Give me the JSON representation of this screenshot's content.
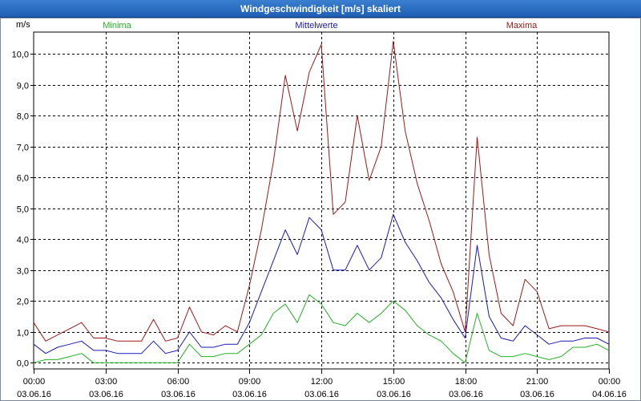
{
  "window": {
    "title": "Windgeschwindigkeit [m/s] skaliert"
  },
  "colors": {
    "minima": "#22b322",
    "mittel": "#1a1ab8",
    "maxima": "#a01818",
    "grid": "#000000"
  },
  "chart_data": {
    "type": "line",
    "title": "Windgeschwindigkeit [m/s] skaliert",
    "ylabel": "m/s",
    "xlabel": "",
    "ylim": [
      -0.2,
      10.7
    ],
    "xlim": [
      0,
      24
    ],
    "yticks": [
      "0,0",
      "1,0",
      "2,0",
      "3,0",
      "4,0",
      "5,0",
      "6,0",
      "7,0",
      "8,0",
      "9,0",
      "10,0"
    ],
    "xticks": [
      {
        "time": "00:00",
        "date": "03.06.16"
      },
      {
        "time": "03:00",
        "date": "03.06.16"
      },
      {
        "time": "06:00",
        "date": "03.06.16"
      },
      {
        "time": "09:00",
        "date": "03.06.16"
      },
      {
        "time": "12:00",
        "date": "03.06.16"
      },
      {
        "time": "15:00",
        "date": "03.06.16"
      },
      {
        "time": "18:00",
        "date": "03.06.16"
      },
      {
        "time": "21:00",
        "date": "03.06.16"
      },
      {
        "time": "00:00",
        "date": "04.06.16"
      }
    ],
    "legend": [
      "Minima",
      "Mittelwerte",
      "Maxima"
    ],
    "x_points": [
      0,
      0.5,
      1,
      1.5,
      2,
      2.5,
      3,
      3.5,
      4,
      4.5,
      5,
      5.5,
      6,
      6.5,
      7,
      7.5,
      8,
      8.5,
      9,
      9.5,
      10,
      10.5,
      11,
      11.5,
      12,
      12.5,
      13,
      13.5,
      14,
      14.5,
      15,
      15.5,
      16,
      16.5,
      17,
      17.5,
      18,
      18.5,
      19,
      19.5,
      20,
      20.5,
      21,
      21.5,
      22,
      22.5,
      23,
      23.5,
      24
    ],
    "series": [
      {
        "name": "Maxima",
        "values": [
          1.3,
          0.7,
          0.9,
          1.1,
          1.3,
          0.8,
          0.8,
          0.7,
          0.7,
          0.7,
          1.4,
          0.7,
          0.8,
          1.8,
          1.0,
          0.9,
          1.2,
          1.0,
          2.5,
          4.3,
          6.5,
          9.3,
          7.5,
          9.4,
          10.3,
          4.8,
          5.2,
          8.0,
          5.9,
          7.0,
          10.4,
          7.5,
          5.8,
          4.6,
          3.2,
          2.3,
          1.0,
          7.3,
          3.5,
          1.6,
          1.2,
          2.7,
          2.3,
          1.1,
          1.2,
          1.2,
          1.2,
          1.1,
          1.0
        ]
      },
      {
        "name": "Mittelwerte",
        "values": [
          0.6,
          0.3,
          0.5,
          0.6,
          0.7,
          0.4,
          0.4,
          0.3,
          0.3,
          0.3,
          0.7,
          0.3,
          0.4,
          1.0,
          0.5,
          0.5,
          0.6,
          0.6,
          1.3,
          2.3,
          3.3,
          4.3,
          3.5,
          4.7,
          4.3,
          3.0,
          3.0,
          3.8,
          3.0,
          3.4,
          4.8,
          3.9,
          3.3,
          2.6,
          2.1,
          1.4,
          0.8,
          3.8,
          1.5,
          0.8,
          0.7,
          1.2,
          0.9,
          0.6,
          0.7,
          0.7,
          0.8,
          0.8,
          0.6
        ]
      },
      {
        "name": "Minima",
        "values": [
          0.0,
          0.1,
          0.1,
          0.2,
          0.3,
          0.0,
          0.0,
          0.0,
          0.0,
          0.0,
          0.0,
          0.0,
          0.0,
          0.6,
          0.2,
          0.2,
          0.3,
          0.3,
          0.6,
          0.9,
          1.6,
          1.9,
          1.3,
          2.2,
          1.9,
          1.3,
          1.2,
          1.6,
          1.3,
          1.6,
          2.0,
          1.7,
          1.2,
          0.9,
          0.7,
          0.3,
          0.0,
          1.6,
          0.4,
          0.2,
          0.2,
          0.3,
          0.2,
          0.1,
          0.2,
          0.5,
          0.5,
          0.6,
          0.4
        ]
      }
    ]
  }
}
